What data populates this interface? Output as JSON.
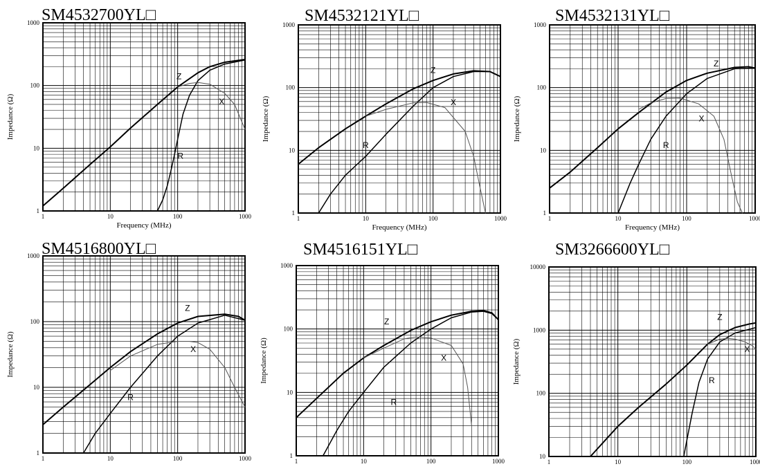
{
  "chart_data": [
    {
      "type": "line",
      "title": "SM4532700YL□",
      "xlabel": "Frequency (MHz)",
      "ylabel": "Impedance (Ω)",
      "xscale": "log",
      "yscale": "log",
      "xlim": [
        1,
        1000
      ],
      "ylim": [
        1,
        1000
      ],
      "xticks": [
        "1",
        "10",
        "100",
        "1000"
      ],
      "yticks": [
        "1",
        "10",
        "100",
        "1000"
      ],
      "grid": true,
      "series": [
        {
          "name": "Z",
          "x": [
            1,
            2,
            5,
            10,
            20,
            50,
            100,
            200,
            300,
            500,
            1000
          ],
          "y": [
            1.2,
            2.3,
            5.5,
            10.5,
            21,
            50,
            95,
            160,
            200,
            235,
            260
          ],
          "stroke": "#000000",
          "width": 2,
          "label_at": [
            105,
            140
          ]
        },
        {
          "name": "R",
          "x": [
            50,
            60,
            70,
            80,
            90,
            100,
            120,
            150,
            200,
            300,
            500,
            1000
          ],
          "y": [
            1.0,
            1.5,
            2.5,
            4.5,
            8,
            14,
            35,
            70,
            120,
            175,
            220,
            255
          ],
          "stroke": "#000000",
          "width": 1.5,
          "label_at": [
            110,
            7.5
          ]
        },
        {
          "name": "X",
          "x": [
            100,
            150,
            200,
            300,
            500,
            700,
            1000
          ],
          "y": [
            95,
            108,
            112,
            105,
            75,
            50,
            20
          ],
          "stroke": "#555555",
          "width": 1,
          "label_at": [
            450,
            55
          ]
        }
      ]
    },
    {
      "type": "line",
      "title": "SM4532121YL□",
      "xlabel": "Frequency (MHz)",
      "ylabel": "Impedance (Ω)",
      "xscale": "log",
      "yscale": "log",
      "xlim": [
        1,
        1000
      ],
      "ylim": [
        1,
        1000
      ],
      "xticks": [
        "1",
        "10",
        "100",
        "1000"
      ],
      "yticks": [
        "1",
        "10",
        "100",
        "1000"
      ],
      "grid": true,
      "series": [
        {
          "name": "Z",
          "x": [
            1,
            2,
            5,
            10,
            20,
            50,
            100,
            200,
            400,
            700,
            1000
          ],
          "y": [
            6,
            11,
            22,
            35,
            55,
            95,
            130,
            165,
            185,
            180,
            150
          ],
          "stroke": "#000000",
          "width": 2,
          "label_at": [
            100,
            190
          ]
        },
        {
          "name": "R",
          "x": [
            2,
            3,
            5,
            10,
            20,
            50,
            100,
            200,
            400,
            700,
            1000
          ],
          "y": [
            1.0,
            2,
            4,
            8,
            18,
            50,
            100,
            150,
            180,
            180,
            150
          ],
          "stroke": "#000000",
          "width": 1.5,
          "label_at": [
            10,
            12
          ]
        },
        {
          "name": "X",
          "x": [
            10,
            20,
            50,
            80,
            150,
            300,
            400,
            500,
            600
          ],
          "y": [
            35,
            45,
            57,
            58,
            48,
            20,
            8,
            2.5,
            1
          ],
          "stroke": "#555555",
          "width": 1,
          "label_at": [
            200,
            58
          ]
        }
      ]
    },
    {
      "type": "line",
      "title": "SM4532131YL□",
      "xlabel": "Frequency (MHz)",
      "ylabel": "Impedance (Ω)",
      "xscale": "log",
      "yscale": "log",
      "xlim": [
        1,
        1000
      ],
      "ylim": [
        1,
        1000
      ],
      "xticks": [
        "1",
        "10",
        "100",
        "1000"
      ],
      "yticks": [
        "1",
        "10",
        "100",
        "1000"
      ],
      "grid": true,
      "series": [
        {
          "name": "Z",
          "x": [
            1,
            2,
            5,
            10,
            20,
            50,
            100,
            200,
            500,
            800,
            1000
          ],
          "y": [
            2.5,
            4.5,
            11,
            22,
            40,
            85,
            130,
            170,
            210,
            215,
            205
          ],
          "stroke": "#000000",
          "width": 2,
          "label_at": [
            270,
            240
          ]
        },
        {
          "name": "R",
          "x": [
            10,
            15,
            20,
            30,
            50,
            100,
            200,
            500,
            1000
          ],
          "y": [
            1.0,
            3,
            6,
            15,
            35,
            80,
            140,
            200,
            205
          ],
          "stroke": "#000000",
          "width": 1.5,
          "label_at": [
            50,
            12
          ]
        },
        {
          "name": "X",
          "x": [
            20,
            30,
            50,
            80,
            150,
            250,
            350,
            450,
            550,
            650
          ],
          "y": [
            45,
            57,
            67,
            68,
            55,
            35,
            15,
            4,
            1.5,
            1
          ],
          "stroke": "#555555",
          "width": 1,
          "label_at": [
            165,
            32
          ]
        }
      ]
    },
    {
      "type": "line",
      "title": "SM4516800YL□",
      "xlabel": "",
      "ylabel": "Impedance (Ω)",
      "xscale": "log",
      "yscale": "log",
      "xlim": [
        1,
        1000
      ],
      "ylim": [
        1,
        1000
      ],
      "xticks": [
        "1",
        "10",
        "100",
        "1000"
      ],
      "yticks": [
        "1",
        "10",
        "100",
        "1000"
      ],
      "grid": true,
      "series": [
        {
          "name": "Z",
          "x": [
            1,
            2,
            5,
            10,
            20,
            50,
            100,
            200,
            500,
            800,
            1000
          ],
          "y": [
            2.7,
            5,
            11,
            20,
            35,
            65,
            95,
            120,
            130,
            120,
            105
          ],
          "stroke": "#000000",
          "width": 2,
          "label_at": [
            140,
            160
          ]
        },
        {
          "name": "R",
          "x": [
            4,
            6,
            10,
            20,
            50,
            100,
            200,
            500,
            1000
          ],
          "y": [
            1.0,
            2,
            4,
            10,
            30,
            60,
            95,
            125,
            105
          ],
          "stroke": "#000000",
          "width": 1.5,
          "label_at": [
            20,
            7
          ]
        },
        {
          "name": "X",
          "x": [
            10,
            20,
            50,
            100,
            150,
            200,
            300,
            500,
            700,
            1000
          ],
          "y": [
            18,
            30,
            45,
            50,
            50,
            48,
            38,
            20,
            10,
            5
          ],
          "stroke": "#555555",
          "width": 1,
          "label_at": [
            170,
            38
          ]
        }
      ]
    },
    {
      "type": "line",
      "title": "SM4516151YL□",
      "xlabel": "",
      "ylabel": "Impedance (Ω)",
      "xscale": "log",
      "yscale": "log",
      "xlim": [
        1,
        1000
      ],
      "ylim": [
        1,
        1000
      ],
      "xticks": [
        "1",
        "10",
        "100",
        "1000"
      ],
      "yticks": [
        "1",
        "10",
        "100",
        "1000"
      ],
      "grid": true,
      "series": [
        {
          "name": "Z",
          "x": [
            1,
            2,
            5,
            10,
            20,
            50,
            100,
            200,
            400,
            600,
            800,
            1000
          ],
          "y": [
            4,
            8,
            20,
            35,
            55,
            95,
            130,
            165,
            190,
            195,
            180,
            140
          ],
          "stroke": "#000000",
          "width": 2,
          "label_at": [
            22,
            130
          ]
        },
        {
          "name": "R",
          "x": [
            2.5,
            4,
            6,
            10,
            20,
            50,
            100,
            200,
            400,
            600,
            800,
            1000
          ],
          "y": [
            1.0,
            2.5,
            5,
            10,
            25,
            60,
            100,
            150,
            185,
            190,
            175,
            140
          ],
          "stroke": "#000000",
          "width": 1.5,
          "label_at": [
            28,
            7
          ]
        },
        {
          "name": "X",
          "x": [
            10,
            20,
            40,
            60,
            100,
            200,
            300,
            350,
            400
          ],
          "y": [
            35,
            50,
            70,
            75,
            72,
            55,
            28,
            12,
            3
          ],
          "stroke": "#555555",
          "width": 1,
          "label_at": [
            155,
            35
          ]
        }
      ]
    },
    {
      "type": "line",
      "title": "SM3266600YL□",
      "xlabel": "",
      "ylabel": "Impedance (Ω)",
      "xscale": "log",
      "yscale": "log",
      "xlim": [
        1,
        1000
      ],
      "ylim": [
        10,
        10000
      ],
      "xticks": [
        "1",
        "10",
        "100",
        "1000"
      ],
      "yticks": [
        "10",
        "100",
        "1000",
        "10000"
      ],
      "grid": true,
      "series": [
        {
          "name": "Z",
          "x": [
            4,
            10,
            20,
            50,
            100,
            200,
            300,
            500,
            800,
            1000
          ],
          "y": [
            10,
            30,
            60,
            140,
            280,
            600,
            850,
            1100,
            1250,
            1300
          ],
          "stroke": "#000000",
          "width": 2,
          "label_at": [
            300,
            1600
          ]
        },
        {
          "name": "R",
          "x": [
            90,
            100,
            120,
            150,
            200,
            300,
            500,
            1000
          ],
          "y": [
            10,
            18,
            50,
            150,
            350,
            650,
            900,
            1100
          ],
          "stroke": "#000000",
          "width": 1.5,
          "label_at": [
            230,
            160
          ]
        },
        {
          "name": "X",
          "x": [
            200,
            300,
            400,
            500,
            700,
            900,
            1000
          ],
          "y": [
            600,
            720,
            740,
            720,
            650,
            560,
            500
          ],
          "stroke": "#555555",
          "width": 1,
          "label_at": [
            750,
            500
          ]
        }
      ]
    }
  ]
}
